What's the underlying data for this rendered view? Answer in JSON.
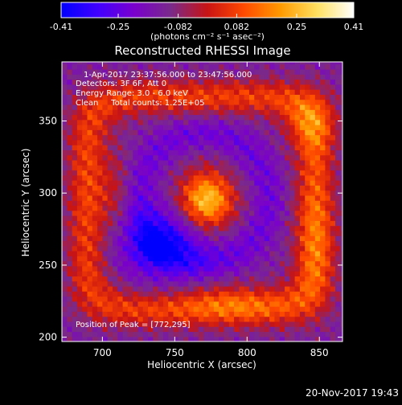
{
  "chart_data": {
    "type": "heatmap",
    "title": "Reconstructed RHESSI Image",
    "xlabel": "Heliocentric X (arcsec)",
    "ylabel": "Heliocentric Y (arcsec)",
    "xlim": [
      672,
      866
    ],
    "ylim": [
      197,
      391
    ],
    "x_ticks": [
      700,
      750,
      800,
      850
    ],
    "y_ticks": [
      200,
      250,
      300,
      350
    ],
    "x_tick_labels": [
      "700",
      "750",
      "800",
      "850"
    ],
    "y_tick_labels": [
      "200",
      "250",
      "300",
      "350"
    ],
    "annotations": [
      "1-Apr-2017 23:37:56.000 to 23:47:56.000",
      "Detectors: 3F 6F, Att 0",
      "Energy Range: 3.0 - 6.0 keV",
      "Clean     Total counts: 1.25E+05"
    ],
    "peak_label": "Position of Peak = [772,295]",
    "peak": {
      "x": 772,
      "y": 295,
      "value": 0.41
    },
    "colorbar": {
      "min": -0.41,
      "max": 0.41,
      "tick_values": [
        -0.41,
        -0.25,
        -0.082,
        0.082,
        0.25,
        0.41
      ],
      "tick_labels": [
        "-0.41",
        "-0.25",
        "-0.082",
        "0.082",
        "0.25",
        "0.41"
      ],
      "units_label": "(photons cm⁻² s⁻¹ asec⁻²)",
      "colors": [
        "#0000ff",
        "#4000ff",
        "#7a00cc",
        "#7a2a8a",
        "#c81414",
        "#ff4a00",
        "#ff9a00",
        "#ffe060",
        "#ffffff"
      ]
    },
    "features": [
      {
        "label": "",
        "shape": "blob",
        "x": 772,
        "y": 295,
        "sx": 13,
        "sy": 14,
        "value": 0.41
      },
      {
        "label": "",
        "shape": "ring",
        "x": 770,
        "y": 297,
        "r": 45,
        "w": 8,
        "value": -0.09
      },
      {
        "label": "",
        "shape": "blob",
        "x": 742,
        "y": 266,
        "sx": 22,
        "sy": 17,
        "value": -0.22
      },
      {
        "label": "",
        "shape": "blob",
        "x": 738,
        "y": 262,
        "sx": 7,
        "sy": 6,
        "value": -0.17
      },
      {
        "label": "",
        "shape": "box-ring",
        "x": 768,
        "y": 293,
        "half_w": 79,
        "half_h": 74,
        "w": 9,
        "value": 0.2
      },
      {
        "label": "",
        "shape": "blob",
        "x": 708,
        "y": 300,
        "sx": 9,
        "sy": 22,
        "value": 0.1
      },
      {
        "label": "",
        "shape": "blob",
        "x": 845,
        "y": 350,
        "sx": 12,
        "sy": 14,
        "value": 0.15
      },
      {
        "label": "",
        "shape": "blob",
        "x": 848,
        "y": 265,
        "sx": 10,
        "sy": 30,
        "value": 0.1
      },
      {
        "label": "",
        "shape": "blob",
        "x": 790,
        "y": 226,
        "sx": 26,
        "sy": 9,
        "value": 0.12
      }
    ]
  },
  "footer": {
    "timestamp": "20-Nov-2017 19:43"
  }
}
